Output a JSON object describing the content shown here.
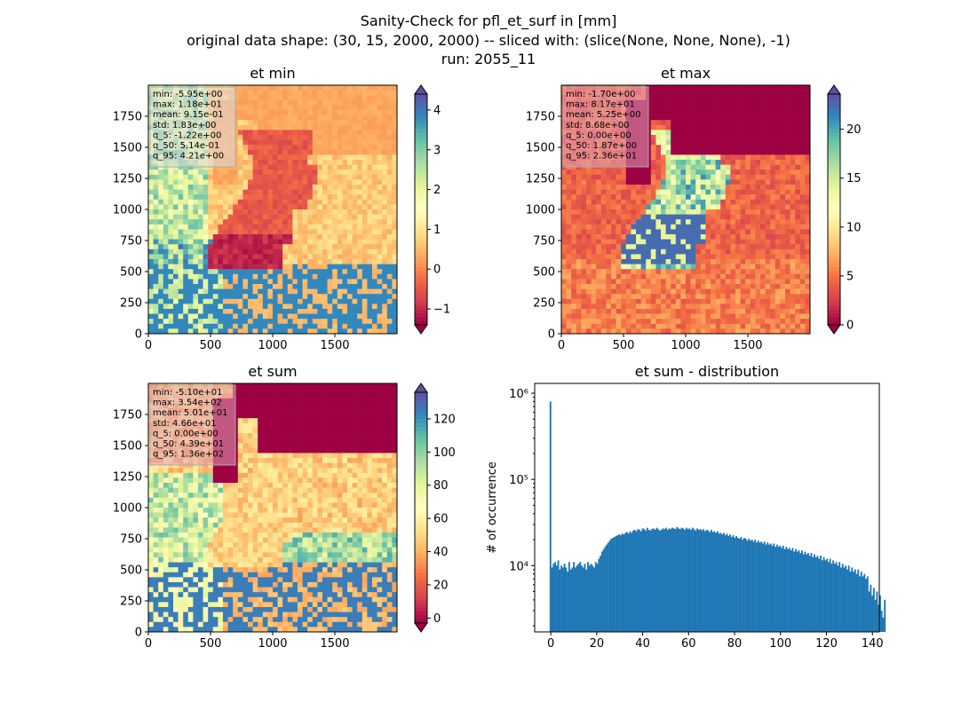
{
  "figure": {
    "suptitle": [
      "Sanity-Check for pfl_et_surf in [mm]",
      "original data shape: (30, 15, 2000, 2000) -- sliced with: (slice(None, None, None), -1)",
      "run: 2055_11"
    ]
  },
  "chart_data": [
    {
      "type": "heatmap",
      "title": "et min",
      "xlim": [
        0,
        2000
      ],
      "ylim": [
        0,
        2000
      ],
      "xticks": [
        "0",
        "500",
        "1000",
        "1500"
      ],
      "yticks": [
        "0",
        "250",
        "500",
        "750",
        "1000",
        "1250",
        "1500",
        "1750"
      ],
      "colormap": "Spectral",
      "colorbar": {
        "range": [
          -1.4,
          4.4
        ],
        "ticks": [
          "−1",
          "0",
          "1",
          "2",
          "3",
          "4"
        ],
        "extend": "both"
      },
      "stats": [
        "min: -5.95e+00",
        "max: 1.18e+01",
        "mean: 9.15e-01",
        "std: 1.83e+00",
        "q_5: -1.22e+00",
        "q_50: 5.14e-01",
        "q_95: 4.21e+00"
      ]
    },
    {
      "type": "heatmap",
      "title": "et max",
      "xlim": [
        0,
        2000
      ],
      "ylim": [
        0,
        2000
      ],
      "xticks": [
        "0",
        "500",
        "1000",
        "1500"
      ],
      "yticks": [
        "0",
        "250",
        "500",
        "750",
        "1000",
        "1250",
        "1500",
        "1750"
      ],
      "colormap": "Spectral",
      "colorbar": {
        "range": [
          0,
          23.6
        ],
        "ticks": [
          "0",
          "5",
          "10",
          "15",
          "20"
        ],
        "extend": "both"
      },
      "stats": [
        "min: -1.70e+00",
        "max: 8.17e+01",
        "mean: 5.25e+00",
        "std: 8.68e+00",
        "q_5: 0.00e+00",
        "q_50: 1.87e+00",
        "q_95: 2.36e+01"
      ]
    },
    {
      "type": "heatmap",
      "title": "et sum",
      "xlim": [
        0,
        2000
      ],
      "ylim": [
        0,
        2000
      ],
      "xticks": [
        "0",
        "500",
        "1000",
        "1500"
      ],
      "yticks": [
        "0",
        "250",
        "500",
        "750",
        "1000",
        "1250",
        "1500",
        "1750"
      ],
      "colormap": "Spectral",
      "colorbar": {
        "range": [
          -3,
          136
        ],
        "ticks": [
          "0",
          "20",
          "40",
          "60",
          "80",
          "100",
          "120"
        ],
        "extend": "both"
      },
      "stats": [
        "min: -5.10e+01",
        "max: 3.54e+02",
        "mean: 5.01e+01",
        "std: 4.66e+01",
        "q_5: 0.00e+00",
        "q_50: 4.39e+01",
        "q_95: 1.36e+02"
      ]
    },
    {
      "type": "bar",
      "title": "et sum - distribution",
      "ylabel": "# of occurrence",
      "yscale": "log",
      "xlim": [
        -7,
        143
      ],
      "ylim": [
        1700,
        1300000
      ],
      "xticks": [
        "0",
        "20",
        "40",
        "60",
        "80",
        "100",
        "120",
        "140"
      ],
      "yticks": [
        "10⁴",
        "10⁵",
        "10⁶"
      ],
      "color": "#1f77b4",
      "bin_start": -0.5,
      "bin_width": 0.68,
      "values": [
        800000,
        9500,
        10500,
        11000,
        10000,
        11500,
        9000,
        10000,
        9500,
        10500,
        9500,
        8500,
        11000,
        9000,
        9500,
        11000,
        9500,
        10000,
        10500,
        11000,
        10000,
        9500,
        10500,
        9000,
        11000,
        10000,
        10500,
        10000,
        9500,
        11000,
        10500,
        12000,
        13000,
        14500,
        15500,
        16500,
        17500,
        18500,
        19500,
        20500,
        21000,
        21500,
        22000,
        22500,
        23000,
        22500,
        23500,
        23000,
        24000,
        24500,
        23500,
        25000,
        24000,
        25500,
        26000,
        25000,
        26500,
        26000,
        25000,
        27000,
        26500,
        25500,
        27500,
        26000,
        25500,
        26500,
        27000,
        26000,
        27500,
        26500,
        25500,
        26000,
        27000,
        26500,
        27500,
        26000,
        27000,
        26500,
        27500,
        27000,
        26500,
        28000,
        27000,
        26500,
        27500,
        27000,
        26000,
        27500,
        26500,
        27000,
        26000,
        27500,
        26500,
        25500,
        27000,
        26000,
        26500,
        25500,
        26500,
        25000,
        26000,
        25500,
        24500,
        26000,
        24500,
        25000,
        24000,
        25000,
        23500,
        24000,
        23000,
        24000,
        22500,
        23500,
        22000,
        23000,
        21500,
        22500,
        21000,
        22000,
        21000,
        20500,
        21500,
        20000,
        21000,
        20500,
        19500,
        20500,
        19500,
        20000,
        19000,
        20000,
        18500,
        19500,
        18500,
        19000,
        18000,
        19000,
        17500,
        18500,
        17500,
        18000,
        17000,
        18000,
        16500,
        17500,
        16500,
        17000,
        16000,
        17000,
        15500,
        16500,
        15500,
        16000,
        15000,
        16000,
        14500,
        15500,
        14500,
        15000,
        14000,
        15000,
        13500,
        14500,
        13500,
        14000,
        13000,
        14000,
        12500,
        13500,
        12500,
        13000,
        12000,
        13000,
        11500,
        12500,
        11500,
        12000,
        11000,
        12000,
        10500,
        11500,
        10500,
        11000,
        10000,
        11000,
        9500,
        10500,
        9500,
        10000,
        9000,
        10000,
        8500,
        9500,
        8500,
        9000,
        8000,
        9000,
        7500,
        8500,
        7500,
        8000,
        7000,
        7500,
        5000,
        6000,
        4500,
        5500,
        4000,
        5000,
        3500,
        4500,
        3000,
        2500,
        4000
      ]
    }
  ]
}
